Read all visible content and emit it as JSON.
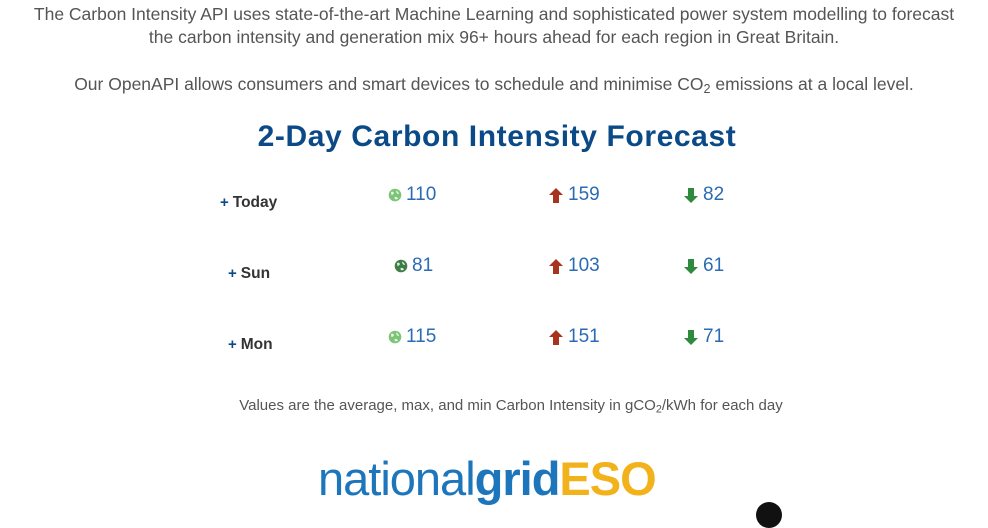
{
  "intro": {
    "line1": "The Carbon Intensity API uses state-of-the-art Machine Learning and sophisticated power system modelling to forecast",
    "line2": "the carbon intensity and generation mix 96+ hours ahead for each region in Great Britain.",
    "openapi_before": "Our OpenAPI allows consumers and smart devices to schedule and minimise CO",
    "openapi_sub": "2",
    "openapi_after": " emissions at a local level."
  },
  "forecast": {
    "title": "2-Day Carbon Intensity Forecast",
    "toggle_symbol": "+",
    "days": [
      {
        "label": "Today",
        "average": "110",
        "max": "159",
        "min": "82"
      },
      {
        "label": "Sun",
        "average": "81",
        "max": "103",
        "min": "61"
      },
      {
        "label": "Mon",
        "average": "115",
        "max": "151",
        "min": "71"
      }
    ],
    "note_before": "Values are the average, max, and min Carbon Intensity in gCO",
    "note_sub": "2",
    "note_after": "/kWh for each day"
  },
  "logo": {
    "part1": "national",
    "part2": "grid",
    "part3": "ESO"
  },
  "icons": {
    "average": "globe-icon",
    "max": "arrow-up-icon",
    "min": "arrow-down-icon"
  },
  "colors": {
    "title": "#0b4a86",
    "value_text": "#2a6bb3",
    "arrow_up": "#a8341f",
    "arrow_down": "#2e8b3e",
    "globe_light": "#7cc576",
    "globe_dark": "#3e7d45",
    "logo_blue": "#1d76bb",
    "logo_yellow": "#f2b21c"
  }
}
